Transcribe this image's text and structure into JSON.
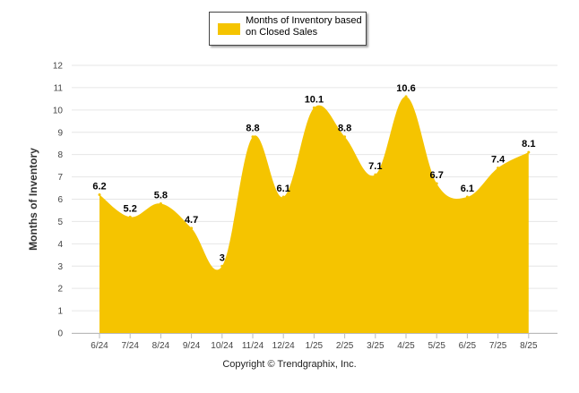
{
  "chart_data": {
    "type": "area",
    "categories": [
      "6/24",
      "7/24",
      "8/24",
      "9/24",
      "10/24",
      "11/24",
      "12/24",
      "1/25",
      "2/25",
      "3/25",
      "4/25",
      "5/25",
      "6/25",
      "7/25",
      "8/25"
    ],
    "series": [
      {
        "name": "Months of Inventory based on Closed Sales",
        "values": [
          6.2,
          5.2,
          5.8,
          4.7,
          3,
          8.8,
          6.1,
          10.1,
          8.8,
          7.1,
          10.6,
          6.7,
          6.1,
          7.4,
          8.1
        ]
      }
    ],
    "data_labels": [
      "6.2",
      "5.2",
      "5.8",
      "4.7",
      "3",
      "8.8",
      "6.1",
      "10.1",
      "8.8",
      "7.1",
      "10.6",
      "6.7",
      "6.1",
      "7.4",
      "8.1"
    ],
    "ylabel": "Months of Inventory",
    "xlabel": "",
    "ylim": [
      0,
      12
    ],
    "yticks": [
      "0",
      "1",
      "2",
      "3",
      "4",
      "5",
      "6",
      "7",
      "8",
      "9",
      "10",
      "11",
      "12"
    ],
    "grid": true,
    "legend_position": "top-center",
    "fill_color": "#F5C400",
    "grid_color": "#e6e6e6"
  },
  "legend": {
    "label": "Months of Inventory based on Closed Sales",
    "color": "#F5C400"
  },
  "footer": {
    "copyright": "Copyright © Trendgraphix, Inc."
  }
}
